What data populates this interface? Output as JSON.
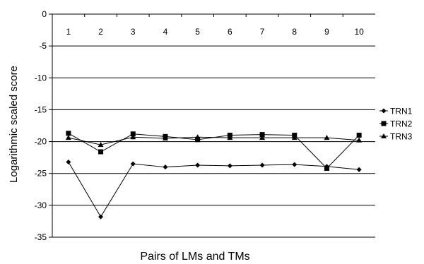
{
  "chart_data": {
    "type": "line",
    "title": "",
    "xlabel": "Pairs of LMs and TMs",
    "ylabel": "Logarithmic scaled score",
    "categories": [
      "1",
      "2",
      "3",
      "4",
      "5",
      "6",
      "7",
      "8",
      "9",
      "10"
    ],
    "ylim": [
      -35,
      0
    ],
    "yticks": [
      0,
      -5,
      -10,
      -15,
      -20,
      -25,
      -30,
      -35
    ],
    "grid": "horizontal",
    "legend_position": "right",
    "series": [
      {
        "name": "TRN1",
        "marker": "diamond",
        "values": [
          -23.2,
          -31.8,
          -23.5,
          -24.0,
          -23.7,
          -23.8,
          -23.7,
          -23.6,
          -23.9,
          -24.4
        ]
      },
      {
        "name": "TRN2",
        "marker": "square",
        "values": [
          -18.7,
          -21.6,
          -18.8,
          -19.2,
          -19.7,
          -19.0,
          -18.9,
          -19.0,
          -24.2,
          -19.0
        ]
      },
      {
        "name": "TRN3",
        "marker": "triangle",
        "values": [
          -19.4,
          -20.5,
          -19.3,
          -19.5,
          -19.3,
          -19.4,
          -19.4,
          -19.4,
          -19.4,
          -19.8
        ]
      }
    ],
    "colors": {
      "line": "#000000",
      "grid": "#000000",
      "background": "#ffffff"
    }
  }
}
